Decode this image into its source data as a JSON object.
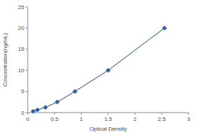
{
  "chart_data": {
    "type": "line",
    "x_label": "Optical Density",
    "y_label": "Concentration(ng/mL)",
    "x": [
      0.1,
      0.18,
      0.33,
      0.55,
      0.88,
      1.5,
      2.55
    ],
    "values": [
      0.31,
      0.63,
      1.25,
      2.5,
      5,
      10,
      20
    ],
    "color": "#2f5fa8",
    "marker": "diamond",
    "line_style": "solid",
    "grid": false,
    "xlim": [
      0,
      3
    ],
    "xticks": [
      0,
      0.5,
      1,
      1.5,
      2,
      2.5,
      3
    ],
    "ylim": [
      0,
      25
    ],
    "yticks": [
      0,
      5,
      10,
      15,
      20,
      25
    ]
  }
}
